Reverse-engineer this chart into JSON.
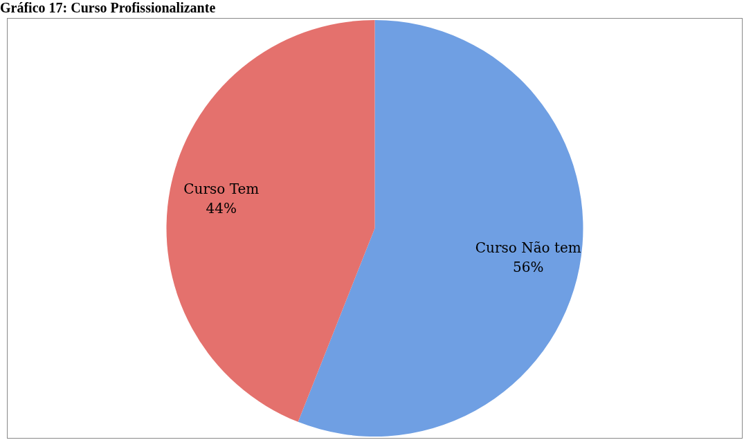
{
  "chart_data": {
    "type": "pie",
    "title": "Gráfico 17: Curso Profissionalizante",
    "categories": [
      "Curso Não tem",
      "Curso Tem"
    ],
    "values": [
      56,
      44
    ],
    "value_labels": [
      "56%",
      "44%"
    ],
    "colors": [
      "#6f9fe3",
      "#e4716d"
    ],
    "legend": false
  }
}
